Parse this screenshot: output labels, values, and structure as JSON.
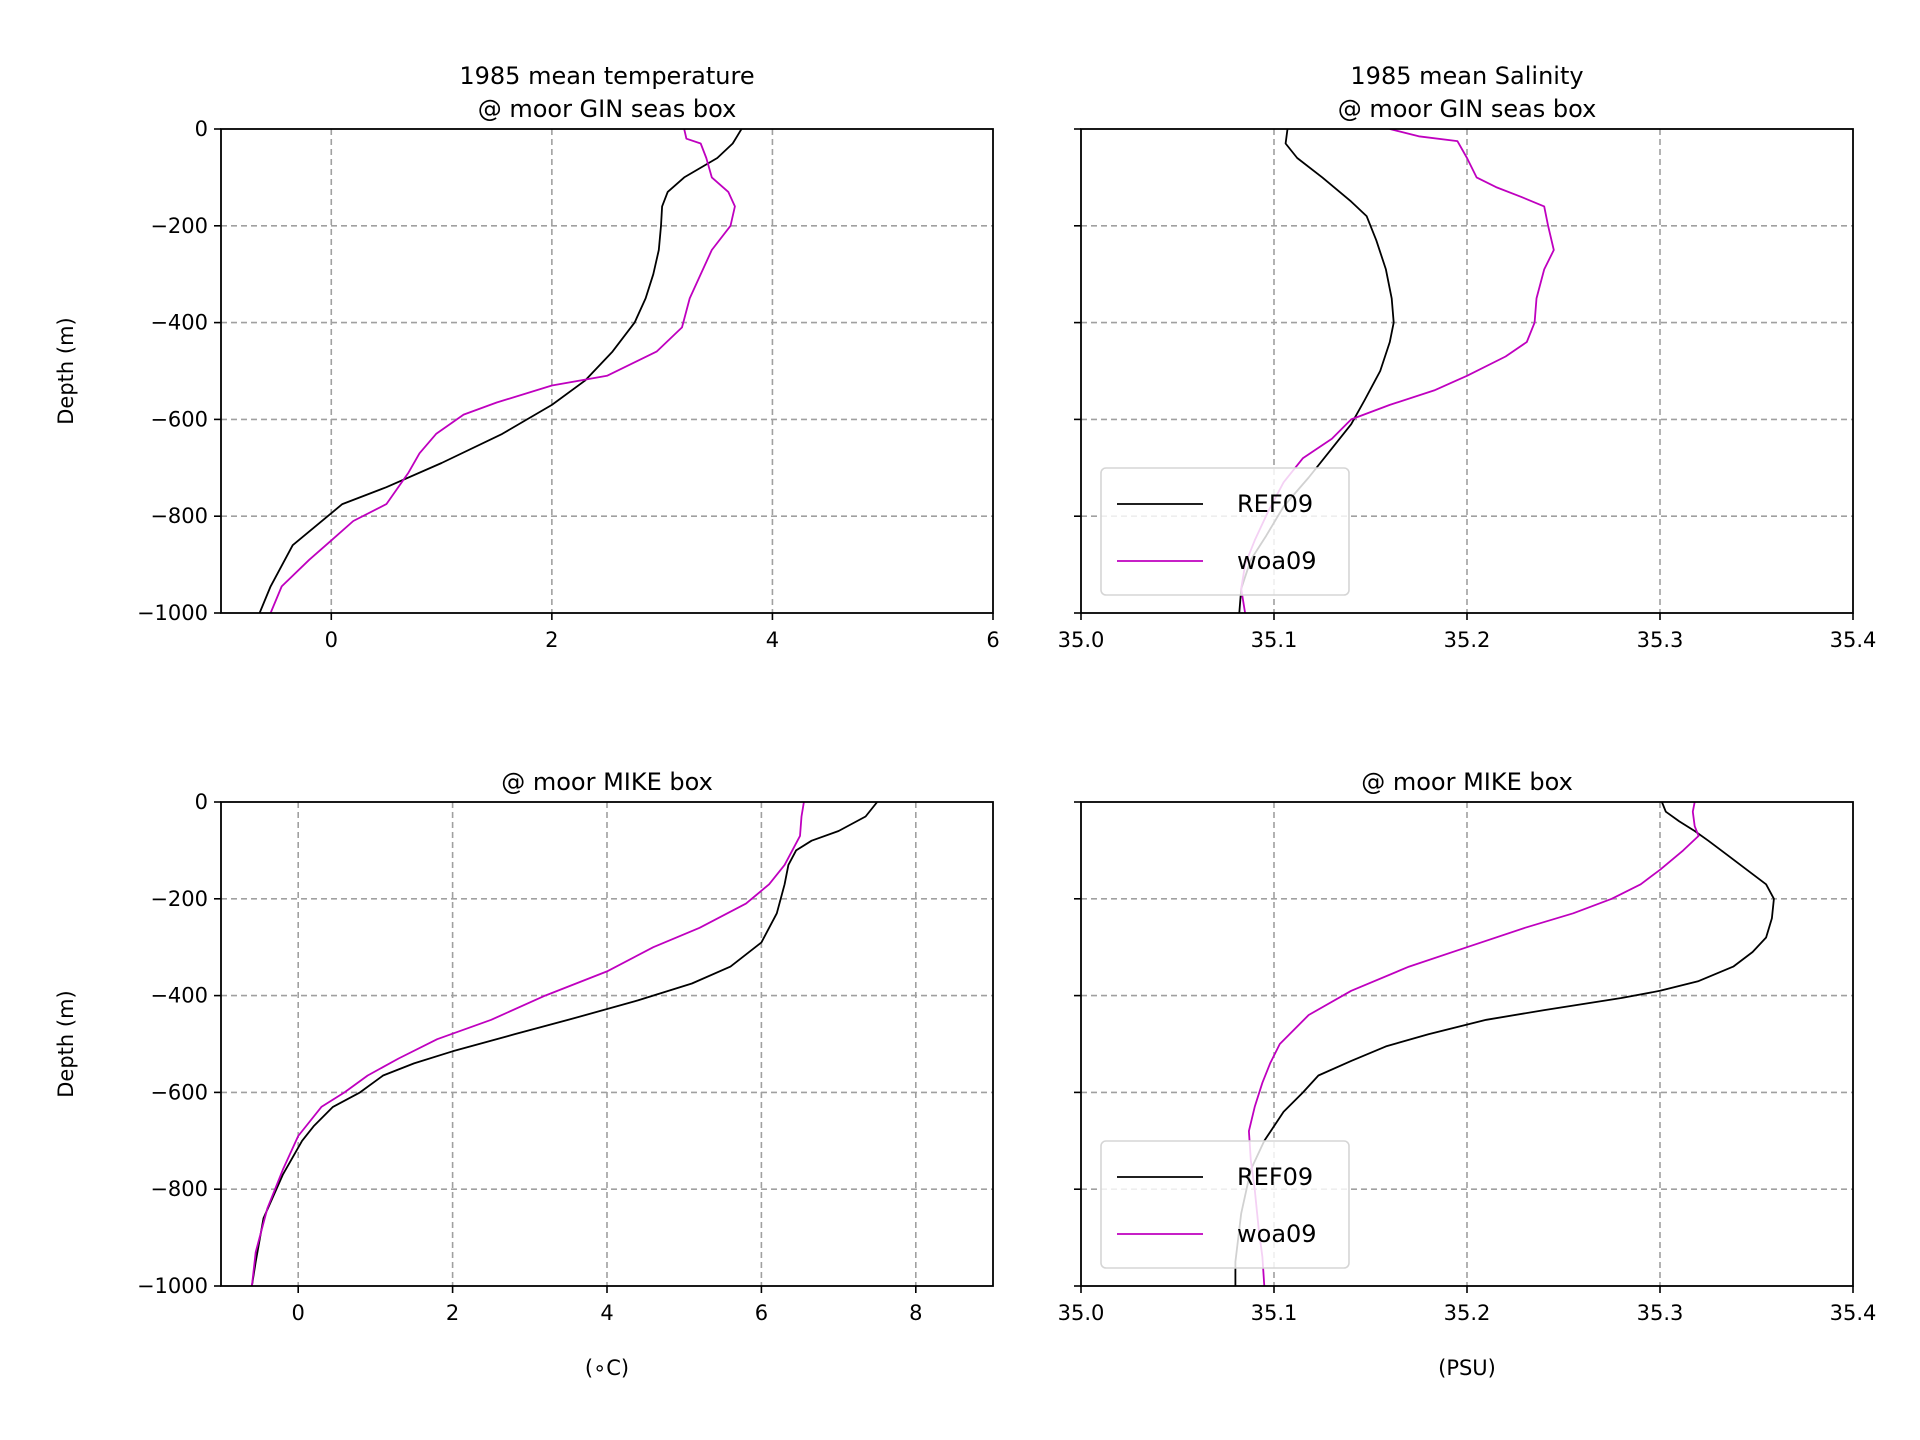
{
  "colors": {
    "REF09": "#000000",
    "woa09": "#bf00bf",
    "grid": "#a0a0a0",
    "axes": "#000000"
  },
  "chart_data": [
    {
      "type": "line",
      "title_lines": [
        "1985 mean temperature",
        "@ moor GIN seas box"
      ],
      "xlabel": "",
      "ylabel": "Depth (m)",
      "xlim": [
        -1,
        6
      ],
      "ylim": [
        -1000,
        0
      ],
      "xticks": [
        0,
        2,
        4,
        6
      ],
      "yticks": [
        0,
        -200,
        -400,
        -600,
        -800,
        -1000
      ],
      "xtick_labels": [
        "0",
        "2",
        "4",
        "6"
      ],
      "ytick_labels": [
        "0",
        "−200",
        "−400",
        "−600",
        "−800",
        "−1000"
      ],
      "grid": true,
      "legend": null,
      "series": [
        {
          "name": "REF09",
          "points": [
            [
              3.72,
              0
            ],
            [
              3.68,
              -15
            ],
            [
              3.64,
              -30
            ],
            [
              3.5,
              -60
            ],
            [
              3.2,
              -100
            ],
            [
              3.05,
              -130
            ],
            [
              3.0,
              -160
            ],
            [
              2.99,
              -200
            ],
            [
              2.97,
              -250
            ],
            [
              2.92,
              -300
            ],
            [
              2.85,
              -350
            ],
            [
              2.75,
              -400
            ],
            [
              2.55,
              -460
            ],
            [
              2.3,
              -520
            ],
            [
              2.0,
              -570
            ],
            [
              1.55,
              -630
            ],
            [
              1.0,
              -690
            ],
            [
              0.5,
              -740
            ],
            [
              0.1,
              -775
            ],
            [
              -0.35,
              -860
            ],
            [
              -0.55,
              -945
            ],
            [
              -0.65,
              -1000
            ]
          ]
        },
        {
          "name": "woa09",
          "points": [
            [
              3.2,
              0
            ],
            [
              3.22,
              -20
            ],
            [
              3.35,
              -30
            ],
            [
              3.4,
              -60
            ],
            [
              3.45,
              -100
            ],
            [
              3.6,
              -130
            ],
            [
              3.66,
              -160
            ],
            [
              3.62,
              -200
            ],
            [
              3.45,
              -250
            ],
            [
              3.35,
              -300
            ],
            [
              3.25,
              -350
            ],
            [
              3.18,
              -410
            ],
            [
              2.95,
              -460
            ],
            [
              2.5,
              -510
            ],
            [
              2.0,
              -530
            ],
            [
              1.5,
              -565
            ],
            [
              1.2,
              -590
            ],
            [
              0.95,
              -630
            ],
            [
              0.8,
              -670
            ],
            [
              0.7,
              -710
            ],
            [
              0.5,
              -775
            ],
            [
              0.2,
              -810
            ],
            [
              0,
              -850
            ],
            [
              -0.2,
              -890
            ],
            [
              -0.45,
              -945
            ],
            [
              -0.55,
              -1000
            ]
          ]
        }
      ]
    },
    {
      "type": "line",
      "title_lines": [
        "1985 mean Salinity",
        "@ moor GIN seas box"
      ],
      "xlabel": "",
      "ylabel": "",
      "xlim": [
        35.0,
        35.4
      ],
      "ylim": [
        -1000,
        0
      ],
      "xticks": [
        35.0,
        35.1,
        35.2,
        35.3,
        35.4
      ],
      "yticks": [
        0,
        -200,
        -400,
        -600,
        -800,
        -1000
      ],
      "xtick_labels": [
        "35.0",
        "35.1",
        "35.2",
        "35.3",
        "35.4"
      ],
      "ytick_labels": [],
      "grid": true,
      "legend": {
        "placement": "lower-left",
        "entries": [
          "REF09",
          "woa09"
        ]
      },
      "series": [
        {
          "name": "REF09",
          "points": [
            [
              35.107,
              0
            ],
            [
              35.106,
              -30
            ],
            [
              35.112,
              -60
            ],
            [
              35.125,
              -100
            ],
            [
              35.14,
              -150
            ],
            [
              35.148,
              -180
            ],
            [
              35.153,
              -230
            ],
            [
              35.158,
              -290
            ],
            [
              35.161,
              -350
            ],
            [
              35.162,
              -400
            ],
            [
              35.16,
              -440
            ],
            [
              35.155,
              -500
            ],
            [
              35.147,
              -560
            ],
            [
              35.14,
              -610
            ],
            [
              35.13,
              -660
            ],
            [
              35.118,
              -720
            ],
            [
              35.105,
              -780
            ],
            [
              35.096,
              -840
            ],
            [
              35.088,
              -890
            ],
            [
              35.083,
              -950
            ],
            [
              35.082,
              -1000
            ]
          ]
        },
        {
          "name": "woa09",
          "points": [
            [
              35.16,
              0
            ],
            [
              35.175,
              -15
            ],
            [
              35.195,
              -25
            ],
            [
              35.2,
              -60
            ],
            [
              35.205,
              -100
            ],
            [
              35.215,
              -120
            ],
            [
              35.228,
              -140
            ],
            [
              35.24,
              -160
            ],
            [
              35.242,
              -200
            ],
            [
              35.245,
              -250
            ],
            [
              35.24,
              -290
            ],
            [
              35.236,
              -350
            ],
            [
              35.235,
              -400
            ],
            [
              35.231,
              -440
            ],
            [
              35.22,
              -470
            ],
            [
              35.2,
              -510
            ],
            [
              35.183,
              -540
            ],
            [
              35.16,
              -570
            ],
            [
              35.14,
              -600
            ],
            [
              35.13,
              -640
            ],
            [
              35.115,
              -680
            ],
            [
              35.105,
              -730
            ],
            [
              35.097,
              -790
            ],
            [
              35.09,
              -850
            ],
            [
              35.085,
              -900
            ],
            [
              35.083,
              -950
            ],
            [
              35.085,
              -1000
            ]
          ]
        }
      ]
    },
    {
      "type": "line",
      "title_lines": [
        "@ moor MIKE box"
      ],
      "xlabel": "(∘C)",
      "ylabel": "Depth (m)",
      "xlim": [
        -1,
        9
      ],
      "ylim": [
        -1000,
        0
      ],
      "xticks": [
        0,
        2,
        4,
        6,
        8
      ],
      "yticks": [
        0,
        -200,
        -400,
        -600,
        -800,
        -1000
      ],
      "xtick_labels": [
        "0",
        "2",
        "4",
        "6",
        "8"
      ],
      "ytick_labels": [
        "0",
        "−200",
        "−400",
        "−600",
        "−800",
        "−1000"
      ],
      "grid": true,
      "legend": null,
      "series": [
        {
          "name": "REF09",
          "points": [
            [
              7.5,
              0
            ],
            [
              7.35,
              -30
            ],
            [
              7.0,
              -60
            ],
            [
              6.65,
              -80
            ],
            [
              6.45,
              -100
            ],
            [
              6.35,
              -130
            ],
            [
              6.3,
              -170
            ],
            [
              6.2,
              -230
            ],
            [
              6.0,
              -290
            ],
            [
              5.6,
              -340
            ],
            [
              5.1,
              -375
            ],
            [
              4.4,
              -410
            ],
            [
              3.5,
              -450
            ],
            [
              2.8,
              -480
            ],
            [
              2.0,
              -515
            ],
            [
              1.5,
              -540
            ],
            [
              1.1,
              -565
            ],
            [
              0.8,
              -600
            ],
            [
              0.45,
              -630
            ],
            [
              0.2,
              -670
            ],
            [
              0.05,
              -700
            ],
            [
              -0.2,
              -770
            ],
            [
              -0.45,
              -860
            ],
            [
              -0.55,
              -950
            ],
            [
              -0.6,
              -1000
            ]
          ]
        },
        {
          "name": "woa09",
          "points": [
            [
              6.55,
              0
            ],
            [
              6.52,
              -30
            ],
            [
              6.5,
              -70
            ],
            [
              6.4,
              -100
            ],
            [
              6.3,
              -130
            ],
            [
              6.1,
              -170
            ],
            [
              5.8,
              -210
            ],
            [
              5.2,
              -260
            ],
            [
              4.6,
              -300
            ],
            [
              4.0,
              -350
            ],
            [
              3.2,
              -400
            ],
            [
              2.5,
              -450
            ],
            [
              1.8,
              -490
            ],
            [
              1.3,
              -530
            ],
            [
              0.9,
              -565
            ],
            [
              0.6,
              -600
            ],
            [
              0.3,
              -630
            ],
            [
              0.0,
              -690
            ],
            [
              -0.2,
              -760
            ],
            [
              -0.4,
              -840
            ],
            [
              -0.55,
              -930
            ],
            [
              -0.6,
              -1000
            ]
          ]
        }
      ]
    },
    {
      "type": "line",
      "title_lines": [
        "@ moor MIKE box"
      ],
      "xlabel": "(PSU)",
      "ylabel": "",
      "xlim": [
        35.0,
        35.4
      ],
      "ylim": [
        -1000,
        0
      ],
      "xticks": [
        35.0,
        35.1,
        35.2,
        35.3,
        35.4
      ],
      "yticks": [
        0,
        -200,
        -400,
        -600,
        -800,
        -1000
      ],
      "xtick_labels": [
        "35.0",
        "35.1",
        "35.2",
        "35.3",
        "35.4"
      ],
      "ytick_labels": [],
      "grid": true,
      "legend": {
        "placement": "lower-left",
        "entries": [
          "REF09",
          "woa09"
        ]
      },
      "series": [
        {
          "name": "REF09",
          "points": [
            [
              35.301,
              0
            ],
            [
              35.303,
              -20
            ],
            [
              35.31,
              -40
            ],
            [
              35.318,
              -60
            ],
            [
              35.325,
              -80
            ],
            [
              35.335,
              -110
            ],
            [
              35.345,
              -140
            ],
            [
              35.355,
              -170
            ],
            [
              35.359,
              -200
            ],
            [
              35.358,
              -240
            ],
            [
              35.355,
              -280
            ],
            [
              35.348,
              -310
            ],
            [
              35.338,
              -340
            ],
            [
              35.32,
              -370
            ],
            [
              35.3,
              -390
            ],
            [
              35.28,
              -405
            ],
            [
              35.24,
              -430
            ],
            [
              35.21,
              -450
            ],
            [
              35.18,
              -480
            ],
            [
              35.158,
              -505
            ],
            [
              35.14,
              -535
            ],
            [
              35.123,
              -565
            ],
            [
              35.115,
              -600
            ],
            [
              35.105,
              -640
            ],
            [
              35.095,
              -700
            ],
            [
              35.088,
              -760
            ],
            [
              35.083,
              -850
            ],
            [
              35.08,
              -950
            ],
            [
              35.08,
              -1000
            ]
          ]
        },
        {
          "name": "woa09",
          "points": [
            [
              35.318,
              0
            ],
            [
              35.317,
              -20
            ],
            [
              35.318,
              -50
            ],
            [
              35.32,
              -70
            ],
            [
              35.312,
              -100
            ],
            [
              35.3,
              -140
            ],
            [
              35.29,
              -170
            ],
            [
              35.275,
              -200
            ],
            [
              35.255,
              -230
            ],
            [
              35.23,
              -260
            ],
            [
              35.2,
              -300
            ],
            [
              35.17,
              -340
            ],
            [
              35.14,
              -390
            ],
            [
              35.118,
              -440
            ],
            [
              35.103,
              -500
            ],
            [
              35.098,
              -540
            ],
            [
              35.094,
              -580
            ],
            [
              35.09,
              -630
            ],
            [
              35.087,
              -680
            ],
            [
              35.088,
              -740
            ],
            [
              35.09,
              -800
            ],
            [
              35.092,
              -880
            ],
            [
              35.094,
              -940
            ],
            [
              35.095,
              -1000
            ]
          ]
        }
      ]
    }
  ]
}
